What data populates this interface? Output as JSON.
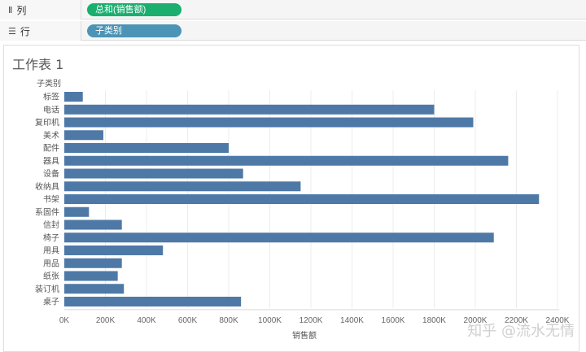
{
  "shelves": {
    "columns": {
      "icon": "columns-icon",
      "label": "列",
      "pill": "总和(销售额)",
      "color": "#1aae6f"
    },
    "rows": {
      "icon": "rows-icon",
      "label": "行",
      "pill": "子类别",
      "color": "#4b94b5"
    }
  },
  "sheet": {
    "title": "工作表 1"
  },
  "watermark": "知乎 @流水无情",
  "chart_data": {
    "type": "bar",
    "orientation": "horizontal",
    "row_header": "子类别",
    "xlabel": "销售额",
    "ylabel": "",
    "bar_color": "#4e79a7",
    "categories": [
      "标签",
      "电话",
      "复印机",
      "美术",
      "配件",
      "器具",
      "设备",
      "收纳具",
      "书架",
      "系固件",
      "信封",
      "椅子",
      "用具",
      "用品",
      "纸张",
      "装订机",
      "桌子"
    ],
    "values": [
      90000,
      1800000,
      1990000,
      190000,
      800000,
      2160000,
      870000,
      1150000,
      2310000,
      120000,
      280000,
      2090000,
      480000,
      280000,
      260000,
      290000,
      860000
    ],
    "xlim": [
      0,
      2400000
    ],
    "xticks": [
      0,
      200000,
      400000,
      600000,
      800000,
      1000000,
      1200000,
      1400000,
      1600000,
      1800000,
      2000000,
      2200000,
      2400000
    ],
    "xtick_labels": [
      "0K",
      "200K",
      "400K",
      "600K",
      "800K",
      "1000K",
      "1200K",
      "1400K",
      "1600K",
      "1800K",
      "2000K",
      "2200K",
      "2400K"
    ],
    "grid": true
  }
}
